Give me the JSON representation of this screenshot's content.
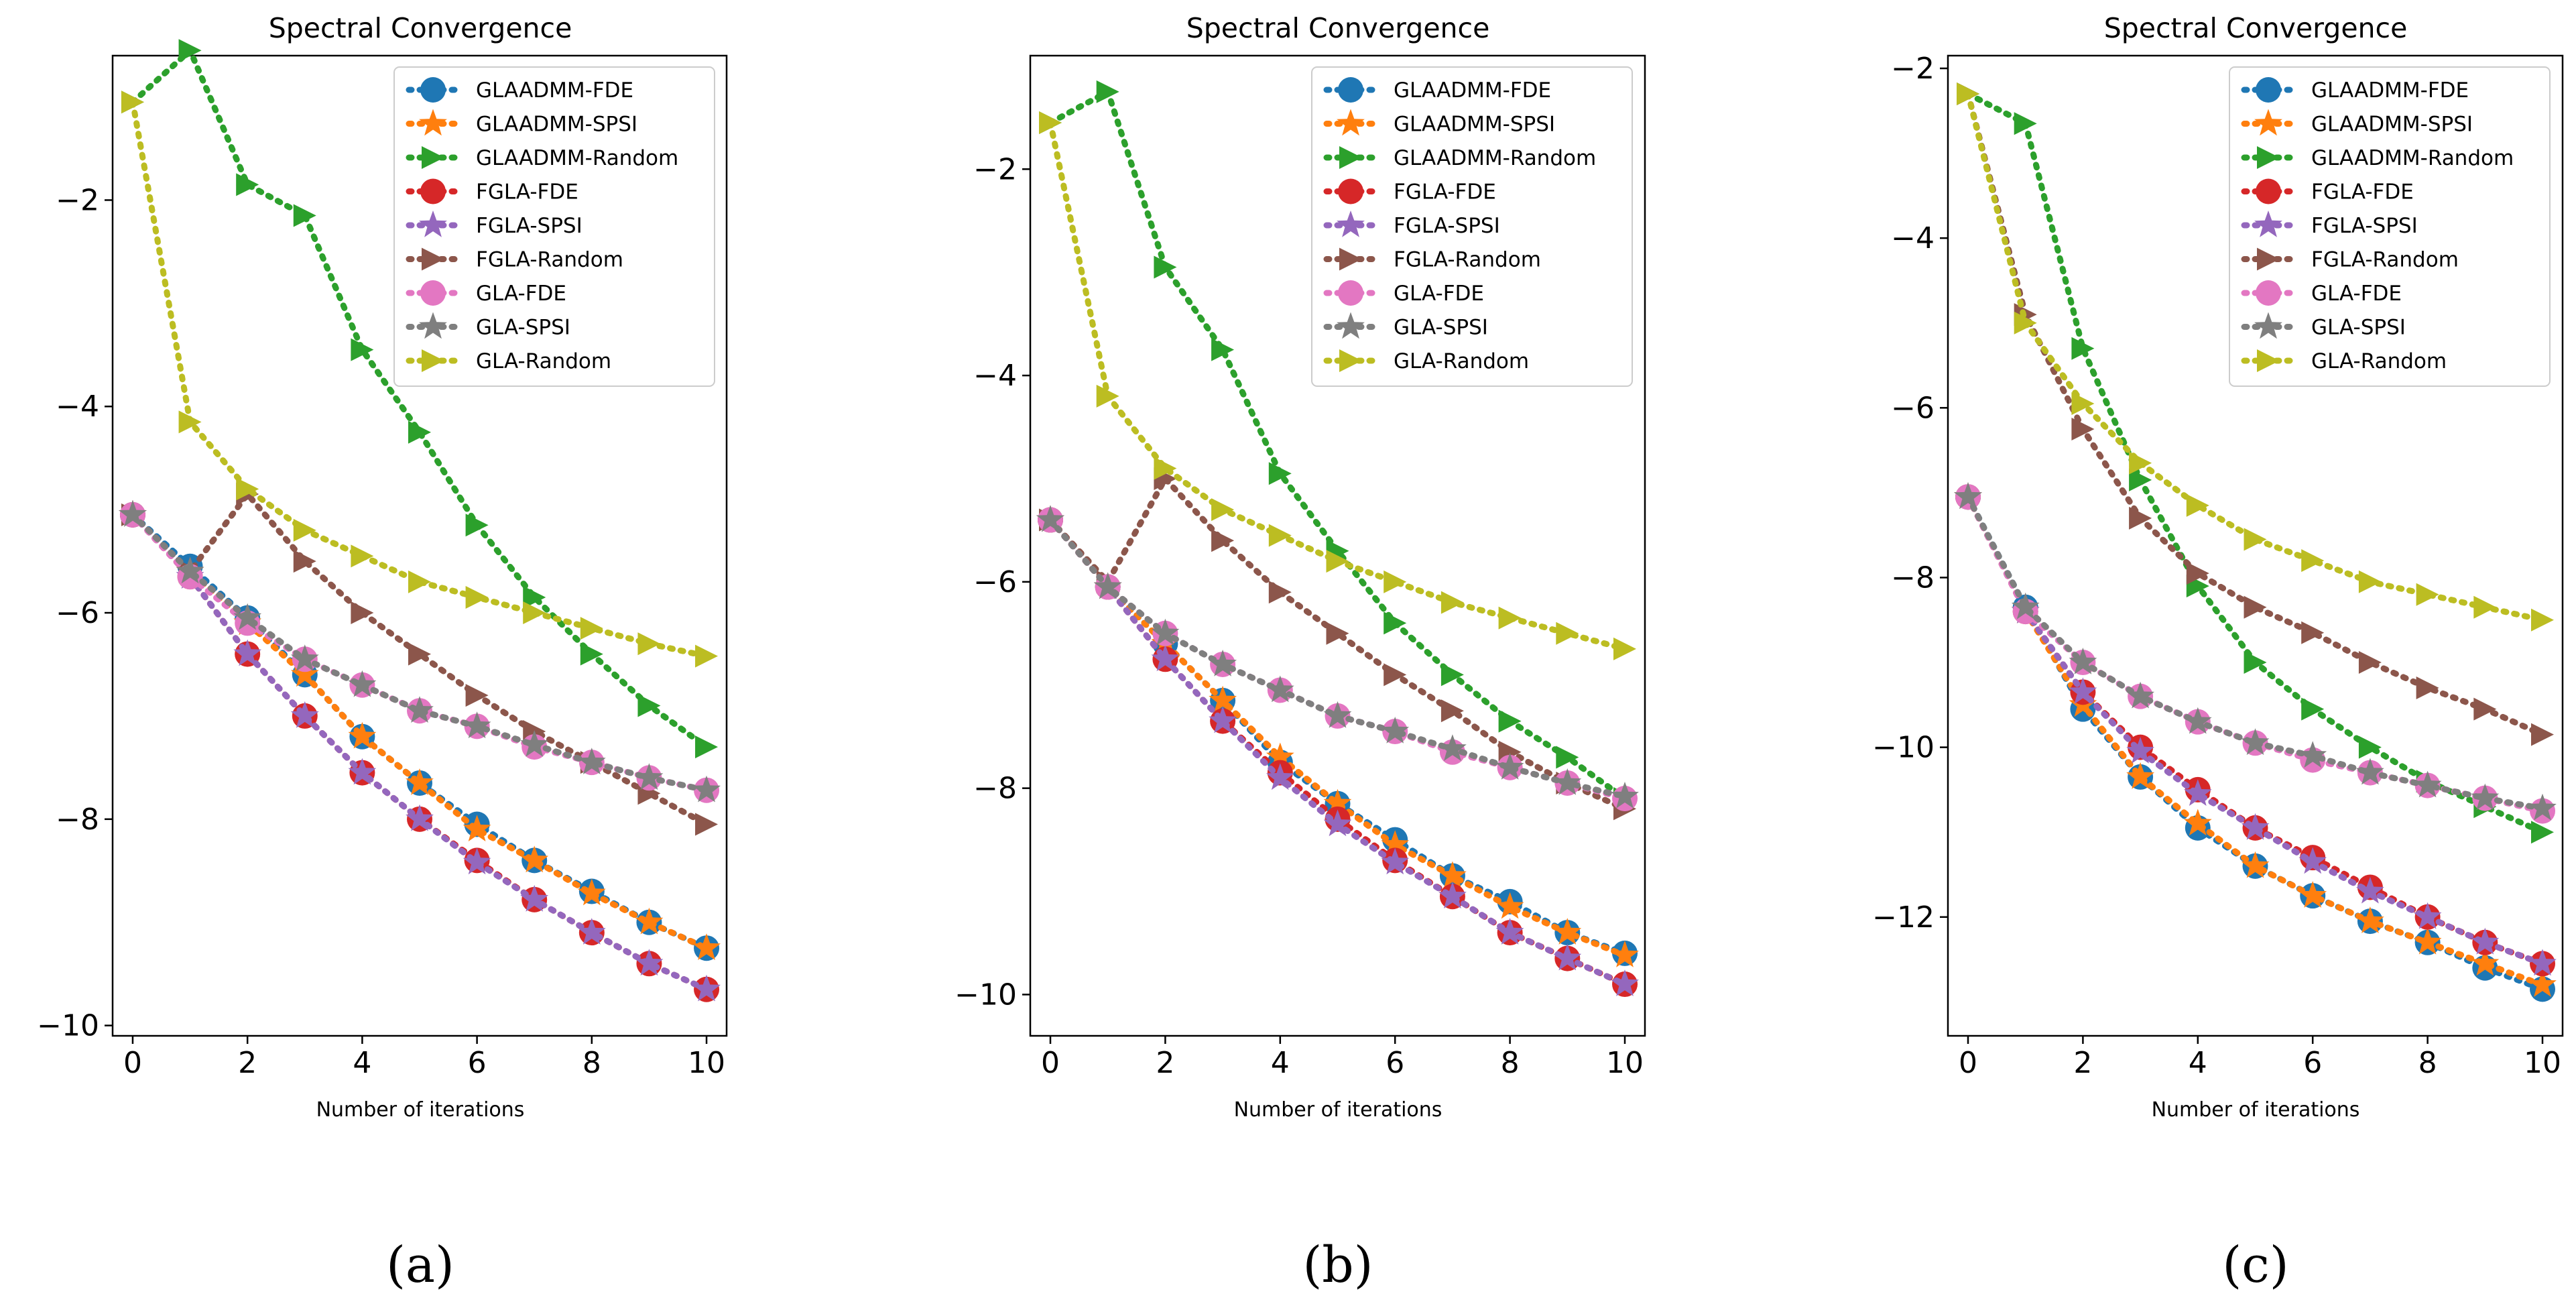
{
  "colors": {
    "GLAADMM-FDE": "#1f77b4",
    "GLAADMM-SPSI": "#ff7f0e",
    "GLAADMM-Random": "#2ca02c",
    "FGLA-FDE": "#d62728",
    "FGLA-SPSI": "#9467bd",
    "FGLA-Random": "#8c564b",
    "GLA-FDE": "#e377c2",
    "GLA-SPSI": "#7f7f7f",
    "GLA-Random": "#bcbd22"
  },
  "chart_data": [
    {
      "type": "line",
      "title": "Spectral Convergence",
      "xlabel": "Number of iterations",
      "ylabel": "",
      "caption": "(a)",
      "xlim": [
        -0.35,
        10.35
      ],
      "ylim": [
        -10.1,
        -0.6
      ],
      "xticks": [
        0,
        2,
        4,
        6,
        8,
        10
      ],
      "yticks": [
        -10,
        -8,
        -6,
        -4,
        -2
      ],
      "grid": false,
      "legend": "top-right",
      "x": [
        0,
        1,
        2,
        3,
        4,
        5,
        6,
        7,
        8,
        9,
        10
      ],
      "series": [
        {
          "name": "GLAADMM-FDE",
          "marker": "circle",
          "values": [
            -5.05,
            -5.55,
            -6.05,
            -6.6,
            -7.2,
            -7.65,
            -8.05,
            -8.4,
            -8.7,
            -9.0,
            -9.25
          ]
        },
        {
          "name": "GLAADMM-SPSI",
          "marker": "star",
          "values": [
            -5.05,
            -5.6,
            -6.1,
            -6.6,
            -7.2,
            -7.65,
            -8.1,
            -8.4,
            -8.72,
            -9.0,
            -9.25
          ]
        },
        {
          "name": "GLAADMM-Random",
          "marker": "triangle-right",
          "values": [
            -1.05,
            -0.55,
            -1.85,
            -2.15,
            -3.45,
            -4.25,
            -5.15,
            -5.85,
            -6.4,
            -6.9,
            -7.3
          ]
        },
        {
          "name": "FGLA-FDE",
          "marker": "circle",
          "values": [
            -5.05,
            -5.65,
            -6.4,
            -7.0,
            -7.55,
            -8.0,
            -8.4,
            -8.78,
            -9.1,
            -9.4,
            -9.65
          ]
        },
        {
          "name": "FGLA-SPSI",
          "marker": "star",
          "values": [
            -5.05,
            -5.65,
            -6.4,
            -7.0,
            -7.55,
            -8.0,
            -8.42,
            -8.78,
            -9.1,
            -9.4,
            -9.65
          ]
        },
        {
          "name": "FGLA-Random",
          "marker": "triangle-right",
          "values": [
            -5.05,
            -5.6,
            -4.85,
            -5.5,
            -6.0,
            -6.4,
            -6.8,
            -7.15,
            -7.45,
            -7.75,
            -8.05
          ]
        },
        {
          "name": "GLA-FDE",
          "marker": "circle",
          "values": [
            -5.05,
            -5.65,
            -6.1,
            -6.45,
            -6.7,
            -6.95,
            -7.1,
            -7.3,
            -7.45,
            -7.6,
            -7.72
          ]
        },
        {
          "name": "GLA-SPSI",
          "marker": "star",
          "values": [
            -5.05,
            -5.6,
            -6.05,
            -6.45,
            -6.7,
            -6.95,
            -7.1,
            -7.28,
            -7.45,
            -7.6,
            -7.72
          ]
        },
        {
          "name": "GLA-Random",
          "marker": "triangle-right",
          "values": [
            -1.05,
            -4.15,
            -4.8,
            -5.2,
            -5.45,
            -5.7,
            -5.85,
            -6.0,
            -6.15,
            -6.3,
            -6.42
          ]
        }
      ]
    },
    {
      "type": "line",
      "title": "Spectral Convergence",
      "xlabel": "Number of iterations",
      "ylabel": "",
      "caption": "(b)",
      "xlim": [
        -0.35,
        10.35
      ],
      "ylim": [
        -10.4,
        -0.9
      ],
      "xticks": [
        0,
        2,
        4,
        6,
        8,
        10
      ],
      "yticks": [
        -10,
        -8,
        -6,
        -4,
        -2
      ],
      "grid": false,
      "legend": "top-right",
      "x": [
        0,
        1,
        2,
        3,
        4,
        5,
        6,
        7,
        8,
        9,
        10
      ],
      "series": [
        {
          "name": "GLAADMM-FDE",
          "marker": "circle",
          "values": [
            -5.4,
            -6.05,
            -6.6,
            -7.15,
            -7.75,
            -8.15,
            -8.5,
            -8.85,
            -9.1,
            -9.4,
            -9.6
          ]
        },
        {
          "name": "GLAADMM-SPSI",
          "marker": "star",
          "values": [
            -5.4,
            -6.05,
            -6.6,
            -7.15,
            -7.7,
            -8.15,
            -8.55,
            -8.85,
            -9.15,
            -9.4,
            -9.62
          ]
        },
        {
          "name": "GLAADMM-Random",
          "marker": "triangle-right",
          "values": [
            -1.55,
            -1.25,
            -2.95,
            -3.75,
            -4.95,
            -5.7,
            -6.4,
            -6.9,
            -7.35,
            -7.7,
            -8.1
          ]
        },
        {
          "name": "FGLA-FDE",
          "marker": "circle",
          "values": [
            -5.4,
            -6.05,
            -6.75,
            -7.35,
            -7.85,
            -8.3,
            -8.7,
            -9.05,
            -9.4,
            -9.65,
            -9.9
          ]
        },
        {
          "name": "FGLA-SPSI",
          "marker": "star",
          "values": [
            -5.4,
            -6.05,
            -6.75,
            -7.35,
            -7.9,
            -8.35,
            -8.72,
            -9.05,
            -9.4,
            -9.65,
            -9.9
          ]
        },
        {
          "name": "FGLA-Random",
          "marker": "triangle-right",
          "values": [
            -5.4,
            -6.0,
            -5.0,
            -5.6,
            -6.1,
            -6.5,
            -6.9,
            -7.25,
            -7.65,
            -7.95,
            -8.2
          ]
        },
        {
          "name": "GLA-FDE",
          "marker": "circle",
          "values": [
            -5.4,
            -6.05,
            -6.5,
            -6.8,
            -7.05,
            -7.3,
            -7.45,
            -7.65,
            -7.8,
            -7.95,
            -8.1
          ]
        },
        {
          "name": "GLA-SPSI",
          "marker": "star",
          "values": [
            -5.4,
            -6.05,
            -6.5,
            -6.8,
            -7.05,
            -7.3,
            -7.45,
            -7.62,
            -7.8,
            -7.95,
            -8.08
          ]
        },
        {
          "name": "GLA-Random",
          "marker": "triangle-right",
          "values": [
            -1.55,
            -4.2,
            -4.9,
            -5.3,
            -5.55,
            -5.8,
            -6.0,
            -6.2,
            -6.35,
            -6.5,
            -6.65
          ]
        }
      ]
    },
    {
      "type": "line",
      "title": "Spectral Convergence",
      "xlabel": "Number of iterations",
      "ylabel": "",
      "caption": "(c)",
      "xlim": [
        -0.35,
        10.35
      ],
      "ylim": [
        -13.4,
        -1.85
      ],
      "xticks": [
        0,
        2,
        4,
        6,
        8,
        10
      ],
      "yticks": [
        -12,
        -10,
        -8,
        -6,
        -4,
        -2
      ],
      "grid": false,
      "legend": "top-right",
      "x": [
        0,
        1,
        2,
        3,
        4,
        5,
        6,
        7,
        8,
        9,
        10
      ],
      "series": [
        {
          "name": "GLAADMM-FDE",
          "marker": "circle",
          "values": [
            -7.05,
            -8.35,
            -9.55,
            -10.35,
            -10.95,
            -11.4,
            -11.75,
            -12.05,
            -12.3,
            -12.6,
            -12.85
          ]
        },
        {
          "name": "GLAADMM-SPSI",
          "marker": "star",
          "values": [
            -7.05,
            -8.4,
            -9.5,
            -10.35,
            -10.9,
            -11.4,
            -11.75,
            -12.05,
            -12.3,
            -12.55,
            -12.8
          ]
        },
        {
          "name": "GLAADMM-Random",
          "marker": "triangle-right",
          "values": [
            -2.3,
            -2.65,
            -5.3,
            -6.85,
            -8.1,
            -9.0,
            -9.55,
            -10.0,
            -10.4,
            -10.7,
            -11.0
          ]
        },
        {
          "name": "FGLA-FDE",
          "marker": "circle",
          "values": [
            -7.05,
            -8.4,
            -9.35,
            -10.0,
            -10.5,
            -10.95,
            -11.3,
            -11.65,
            -12.0,
            -12.3,
            -12.55
          ]
        },
        {
          "name": "FGLA-SPSI",
          "marker": "star",
          "values": [
            -7.05,
            -8.4,
            -9.35,
            -10.05,
            -10.55,
            -10.95,
            -11.35,
            -11.7,
            -12.0,
            -12.3,
            -12.55
          ]
        },
        {
          "name": "FGLA-Random",
          "marker": "triangle-right",
          "values": [
            -2.3,
            -4.9,
            -6.25,
            -7.3,
            -7.95,
            -8.35,
            -8.65,
            -9.0,
            -9.3,
            -9.55,
            -9.85
          ]
        },
        {
          "name": "GLA-FDE",
          "marker": "circle",
          "values": [
            -7.05,
            -8.4,
            -9.0,
            -9.4,
            -9.7,
            -9.95,
            -10.15,
            -10.3,
            -10.45,
            -10.6,
            -10.75
          ]
        },
        {
          "name": "GLA-SPSI",
          "marker": "star",
          "values": [
            -7.05,
            -8.35,
            -9.0,
            -9.4,
            -9.7,
            -9.95,
            -10.1,
            -10.3,
            -10.45,
            -10.6,
            -10.72
          ]
        },
        {
          "name": "GLA-Random",
          "marker": "triangle-right",
          "values": [
            -2.3,
            -5.0,
            -5.95,
            -6.65,
            -7.15,
            -7.55,
            -7.8,
            -8.05,
            -8.2,
            -8.35,
            -8.5
          ]
        }
      ]
    }
  ]
}
